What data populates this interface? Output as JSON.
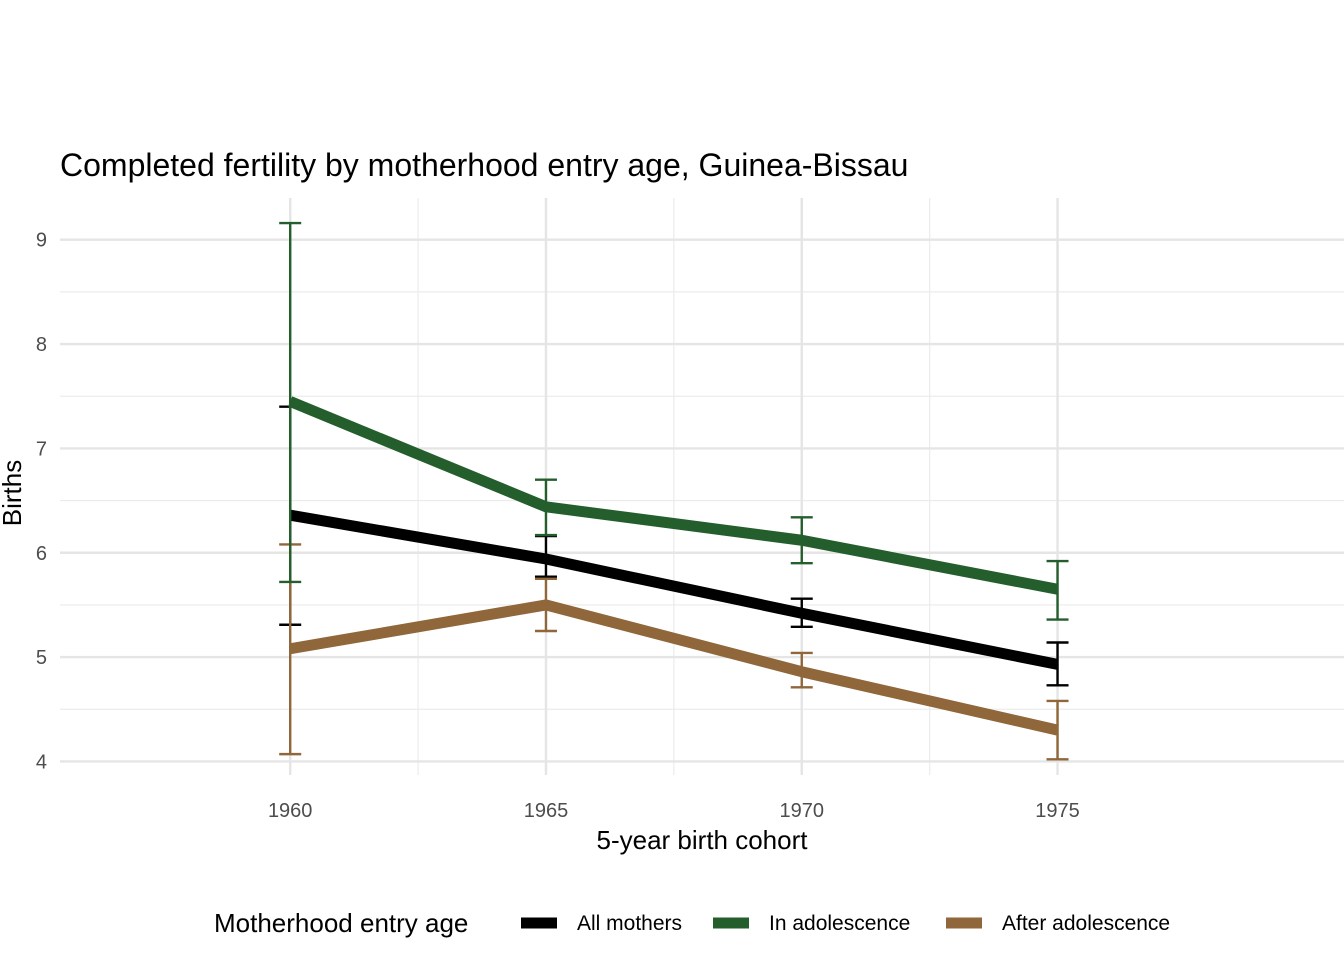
{
  "chart_data": {
    "type": "line",
    "title": "Completed fertility by motherhood entry age,  Guinea-Bissau",
    "xlabel": "5-year birth cohort",
    "ylabel": "Births",
    "x": [
      1960,
      1965,
      1970,
      1975
    ],
    "x_ticks": [
      "1960",
      "1965",
      "1970",
      "1975"
    ],
    "y_ticks": [
      "4",
      "5",
      "6",
      "7",
      "8",
      "9"
    ],
    "xlim": [
      1955.5,
      1980.6
    ],
    "ylim": [
      3.87,
      9.4
    ],
    "grid": true,
    "error_bars": true,
    "legend": {
      "title": "Motherhood entry age",
      "placement": "bottom"
    },
    "series": [
      {
        "name": "All mothers",
        "color": "#000000",
        "values": [
          6.36,
          5.94,
          5.42,
          4.93
        ],
        "lower": [
          5.31,
          5.77,
          5.29,
          4.73
        ],
        "upper": [
          7.4,
          6.16,
          5.56,
          5.14
        ]
      },
      {
        "name": "In adolescence",
        "color": "#245E2D",
        "values": [
          7.45,
          6.44,
          6.12,
          5.65
        ],
        "lower": [
          5.72,
          6.17,
          5.9,
          5.36
        ],
        "upper": [
          9.16,
          6.7,
          6.34,
          5.92
        ]
      },
      {
        "name": "After adolescence",
        "color": "#8F673A",
        "values": [
          5.08,
          5.5,
          4.86,
          4.3
        ],
        "lower": [
          4.07,
          5.25,
          4.71,
          4.02
        ],
        "upper": [
          6.08,
          5.75,
          5.04,
          4.58
        ]
      }
    ]
  }
}
